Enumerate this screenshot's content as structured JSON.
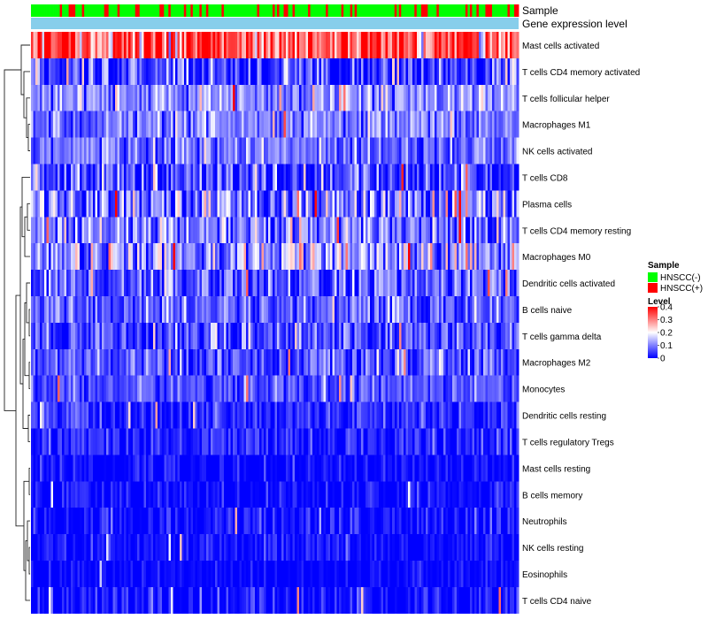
{
  "chart_data": {
    "type": "heatmap",
    "title": "",
    "annotation_tracks": [
      {
        "name": "Sample",
        "categories": [
          "HNSCC(-)",
          "HNSCC(+)"
        ],
        "colors": [
          "#00ff00",
          "#ff0000"
        ],
        "minority": "HNSCC(+)",
        "minority_rate": 0.22
      },
      {
        "name": "Gene expression level",
        "color": "#87ceeb"
      }
    ],
    "rows": [
      {
        "label": "Mast cells activated",
        "mean": 0.34,
        "spread": 0.1
      },
      {
        "label": "T cells CD4 memory activated",
        "mean": 0.05,
        "spread": 0.08
      },
      {
        "label": "T cells follicular helper",
        "mean": 0.11,
        "spread": 0.05
      },
      {
        "label": "Macrophages M1",
        "mean": 0.09,
        "spread": 0.05
      },
      {
        "label": "NK cells activated",
        "mean": 0.09,
        "spread": 0.05
      },
      {
        "label": "T cells CD8",
        "mean": 0.05,
        "spread": 0.07
      },
      {
        "label": "Plasma cells",
        "mean": 0.1,
        "spread": 0.08
      },
      {
        "label": "T cells CD4 memory resting",
        "mean": 0.09,
        "spread": 0.08
      },
      {
        "label": "Macrophages M0",
        "mean": 0.12,
        "spread": 0.08
      },
      {
        "label": "Dendritic cells activated",
        "mean": 0.07,
        "spread": 0.06
      },
      {
        "label": "B cells naive",
        "mean": 0.07,
        "spread": 0.05
      },
      {
        "label": "T cells gamma delta",
        "mean": 0.06,
        "spread": 0.06
      },
      {
        "label": "Macrophages M2",
        "mean": 0.06,
        "spread": 0.05
      },
      {
        "label": "Monocytes",
        "mean": 0.06,
        "spread": 0.04
      },
      {
        "label": "Dendritic cells resting",
        "mean": 0.03,
        "spread": 0.04
      },
      {
        "label": "T cells regulatory  Tregs",
        "mean": 0.02,
        "spread": 0.04
      },
      {
        "label": "Mast cells resting",
        "mean": 0.005,
        "spread": 0.03
      },
      {
        "label": "B cells memory",
        "mean": 0.005,
        "spread": 0.03
      },
      {
        "label": "Neutrophils",
        "mean": 0.01,
        "spread": 0.04
      },
      {
        "label": "NK cells resting",
        "mean": 0.005,
        "spread": 0.03
      },
      {
        "label": "Eosinophils",
        "mean": 0.002,
        "spread": 0.02
      },
      {
        "label": "T cells CD4 naive",
        "mean": 0.01,
        "spread": 0.04
      }
    ],
    "n_columns": 220,
    "value_range": [
      0,
      0.4
    ],
    "colorscale": {
      "low": "#0000ff",
      "mid": "#ffffff",
      "high": "#ff0000",
      "breaks": [
        0,
        0.2,
        0.4
      ]
    },
    "dendrogram": true,
    "legend": {
      "position": "right",
      "sample_title": "Sample",
      "sample_entries": [
        {
          "label": "HNSCC(-)",
          "color": "#00ff00"
        },
        {
          "label": "HNSCC(+)",
          "color": "#ff0000"
        }
      ],
      "level_title": "Level",
      "level_ticks": [
        "0.4",
        "0.3",
        "0.2",
        "0.1",
        "0"
      ],
      "level_values": [
        0.4,
        0.3,
        0.2,
        0.1,
        0
      ]
    }
  }
}
